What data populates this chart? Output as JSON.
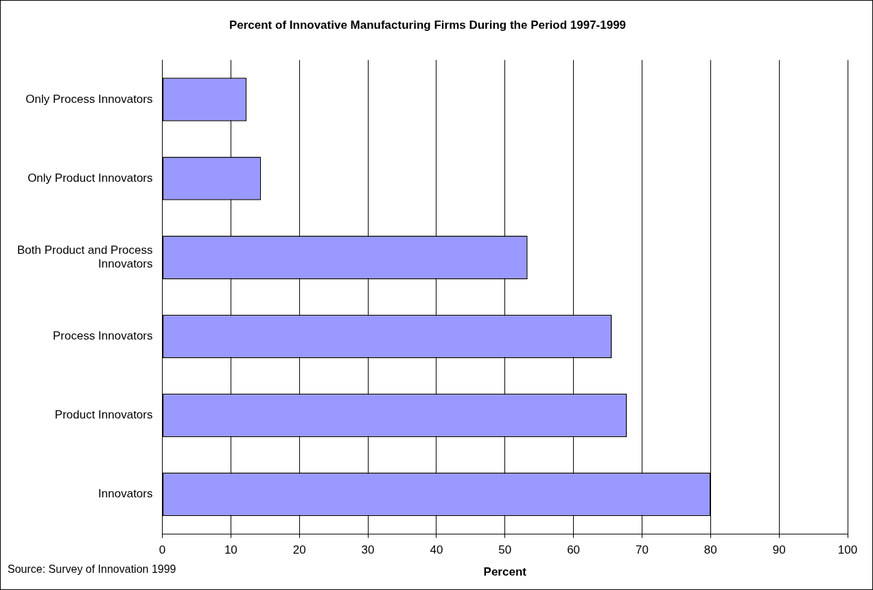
{
  "chart_data": {
    "type": "bar",
    "orientation": "horizontal",
    "title": "Percent of Innovative Manufacturing Firms During the Period 1997-1999",
    "xlabel": "Percent",
    "categories": [
      "Only Process Innovators",
      "Only Product Innovators",
      "Both Product and Process Innovators",
      "Process Innovators",
      "Product Innovators",
      "Innovators"
    ],
    "values": [
      12.3,
      14.4,
      53.3,
      65.6,
      67.8,
      80.0
    ],
    "color": "#9999ff",
    "xlim": [
      0,
      100
    ],
    "xticks": [
      0,
      10,
      20,
      30,
      40,
      50,
      60,
      70,
      80,
      90,
      100
    ],
    "grid": "x",
    "legend": false,
    "annotations": [
      "Source:  Survey of Innovation 1999"
    ]
  }
}
